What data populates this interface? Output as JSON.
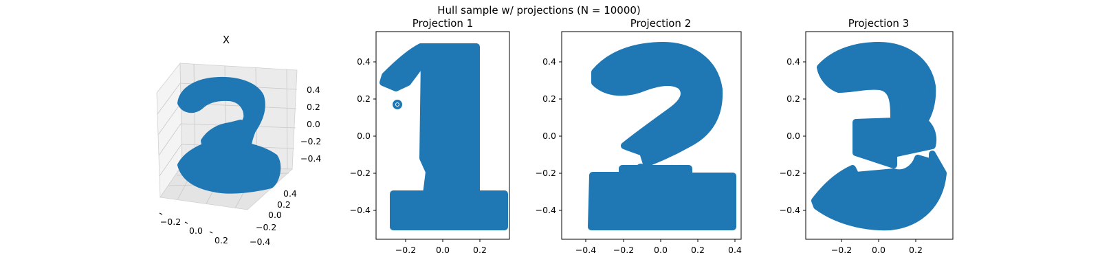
{
  "figure": {
    "suptitle": "Hull sample w/ projections (N = 10000)",
    "point_color": "#1f77b4"
  },
  "chart_data": [
    {
      "type": "scatter",
      "projection": "3d",
      "title": "X",
      "x_ticks": [
        "−0.2",
        "0.0",
        "0.2"
      ],
      "y_ticks": [
        "−0.4",
        "−0.2",
        "0.0",
        "0.2",
        "0.4"
      ],
      "z_ticks": [
        "−0.4",
        "−0.2",
        "0.0",
        "0.2",
        "0.4"
      ],
      "xlim": [
        -0.35,
        0.35
      ],
      "ylim": [
        -0.45,
        0.45
      ],
      "zlim": [
        -0.5,
        0.5
      ],
      "grid": true,
      "n_points": 10000
    },
    {
      "type": "scatter",
      "title": "Projection 1",
      "shape": "digit 1",
      "x_ticks": [
        "−0.2",
        "0.0",
        "0.2"
      ],
      "y_ticks": [
        "−0.4",
        "−0.2",
        "0.0",
        "0.2",
        "0.4"
      ],
      "xlim": [
        -0.36,
        0.36
      ],
      "ylim": [
        -0.555,
        0.555
      ],
      "regions": [
        {
          "x": [
            -0.07,
            0.19
          ],
          "y": [
            -0.2,
            0.5
          ]
        },
        {
          "x": [
            -0.25,
            0.33
          ],
          "y": [
            -0.5,
            -0.3
          ]
        },
        {
          "x": [
            -0.31,
            -0.06
          ],
          "y": [
            0.2,
            0.35
          ]
        }
      ]
    },
    {
      "type": "scatter",
      "title": "Projection 2",
      "shape": "digit 2",
      "x_ticks": [
        "−0.4",
        "−0.2",
        "0.0",
        "0.2",
        "0.4"
      ],
      "y_ticks": [
        "−0.4",
        "−0.2",
        "0.0",
        "0.2",
        "0.4"
      ],
      "xlim": [
        -0.42,
        0.42
      ],
      "ylim": [
        -0.555,
        0.555
      ],
      "regions": [
        {
          "x": [
            -0.38,
            0.38
          ],
          "y": [
            -0.5,
            -0.2
          ]
        },
        {
          "x": [
            -0.38,
            0.33
          ],
          "y": [
            -0.06,
            0.5
          ]
        }
      ]
    },
    {
      "type": "scatter",
      "title": "Projection 3",
      "shape": "digit 3",
      "x_ticks": [
        "−0.2",
        "0.0",
        "0.2"
      ],
      "y_ticks": [
        "−0.4",
        "−0.2",
        "0.0",
        "0.2",
        "0.4"
      ],
      "xlim": [
        -0.39,
        0.39
      ],
      "ylim": [
        -0.555,
        0.555
      ],
      "regions": [
        {
          "x": [
            -0.37,
            0.37
          ],
          "y": [
            -0.5,
            0.5
          ]
        }
      ]
    }
  ]
}
